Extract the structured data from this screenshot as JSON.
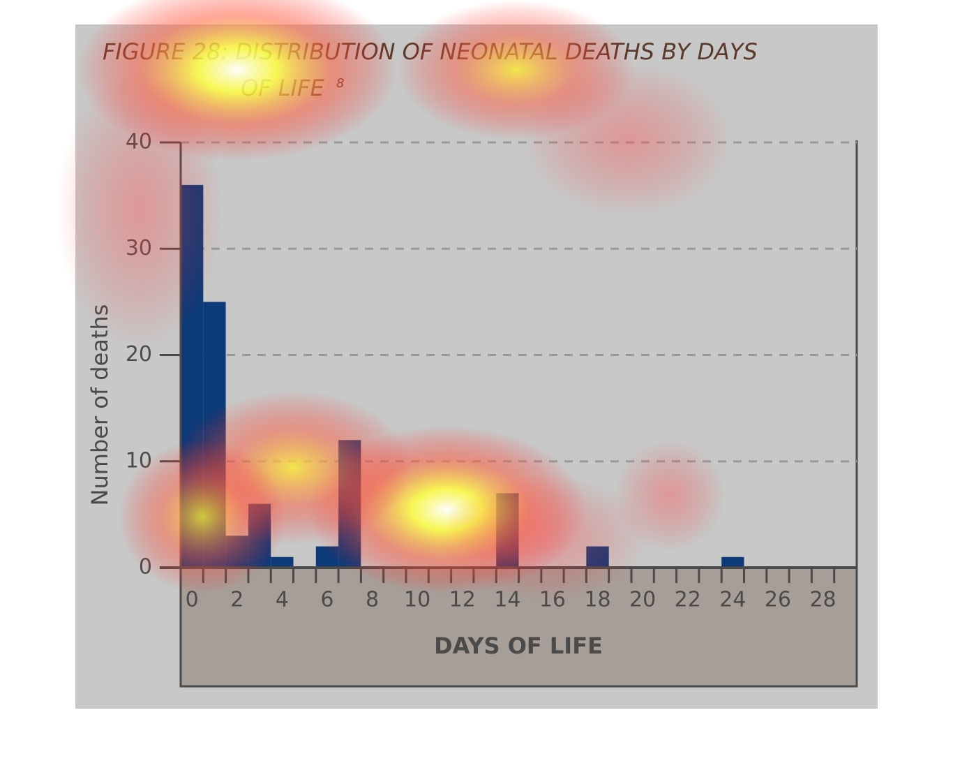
{
  "chart_data": {
    "type": "bar",
    "title": "FIGURE 28: DISTRIBUTION OF NEONATAL DEATHS BY DAYS",
    "title_line2": "OF LIFE",
    "title_superscript": "8",
    "x_label": "DAYS OF LIFE",
    "y_label": "Number of deaths",
    "x": [
      0,
      1,
      2,
      3,
      4,
      5,
      6,
      7,
      8,
      9,
      10,
      11,
      12,
      13,
      14,
      15,
      16,
      17,
      18,
      19,
      20,
      21,
      22,
      23,
      24,
      25,
      26,
      27,
      28,
      29
    ],
    "values": [
      36,
      25,
      3,
      6,
      1,
      0,
      2,
      12,
      0,
      0,
      0,
      0,
      0,
      0,
      7,
      0,
      0,
      0,
      2,
      0,
      0,
      0,
      0,
      0,
      1,
      0,
      0,
      0,
      0,
      0
    ],
    "color": "#0d3a78",
    "xlim": [
      0,
      30
    ],
    "xticks": [
      0,
      2,
      4,
      6,
      8,
      10,
      12,
      14,
      16,
      18,
      20,
      22,
      24,
      26,
      28
    ],
    "ylim": [
      0,
      40
    ],
    "yticks": [
      0,
      10,
      20,
      30,
      40
    ],
    "grid": true
  }
}
